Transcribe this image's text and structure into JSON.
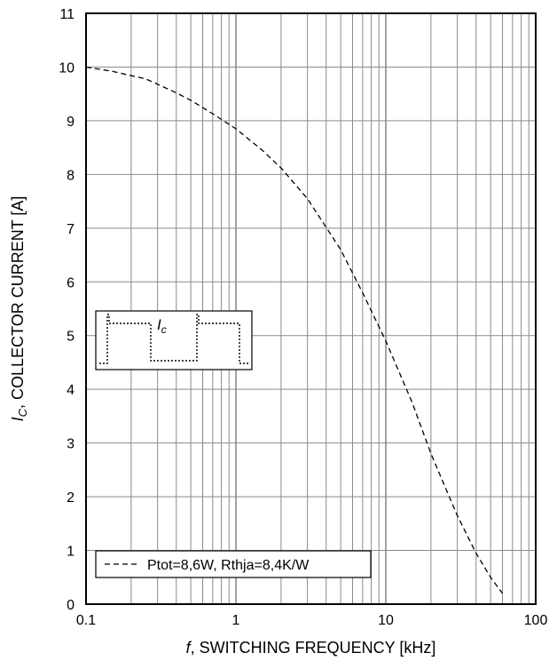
{
  "chart_data": {
    "type": "line",
    "x_scale": "log",
    "xlim": [
      0.1,
      100
    ],
    "ylim": [
      0,
      11
    ],
    "grid": true,
    "x_ticks": [
      "0.1",
      "1",
      "10",
      "100"
    ],
    "y_ticks": [
      "0",
      "1",
      "2",
      "3",
      "4",
      "5",
      "6",
      "7",
      "8",
      "9",
      "10",
      "11"
    ],
    "xlabel": {
      "italic": "f",
      "rest": ", SWITCHING FREQUENCY [kHz]"
    },
    "ylabel": {
      "italic": "I",
      "sub": "C",
      "rest": ", COLLECTOR CURRENT [A]"
    },
    "legend_position": "bottom-left",
    "series": [
      {
        "name": "Ptot=8,6W, Rthja=8,4K/W",
        "style": "dashed",
        "color": "#000000",
        "x": [
          0.1,
          0.15,
          0.2,
          0.25,
          0.3,
          0.4,
          0.5,
          0.7,
          1,
          1.5,
          2,
          3,
          5,
          7,
          10,
          15,
          20,
          30,
          40,
          50,
          60
        ],
        "y": [
          10.0,
          9.92,
          9.84,
          9.78,
          9.68,
          9.52,
          9.38,
          9.13,
          8.85,
          8.45,
          8.12,
          7.55,
          6.6,
          5.8,
          4.9,
          3.75,
          2.8,
          1.65,
          0.95,
          0.5,
          0.2
        ]
      }
    ],
    "inset": {
      "label_italic": "I",
      "label_sub": "c"
    }
  }
}
